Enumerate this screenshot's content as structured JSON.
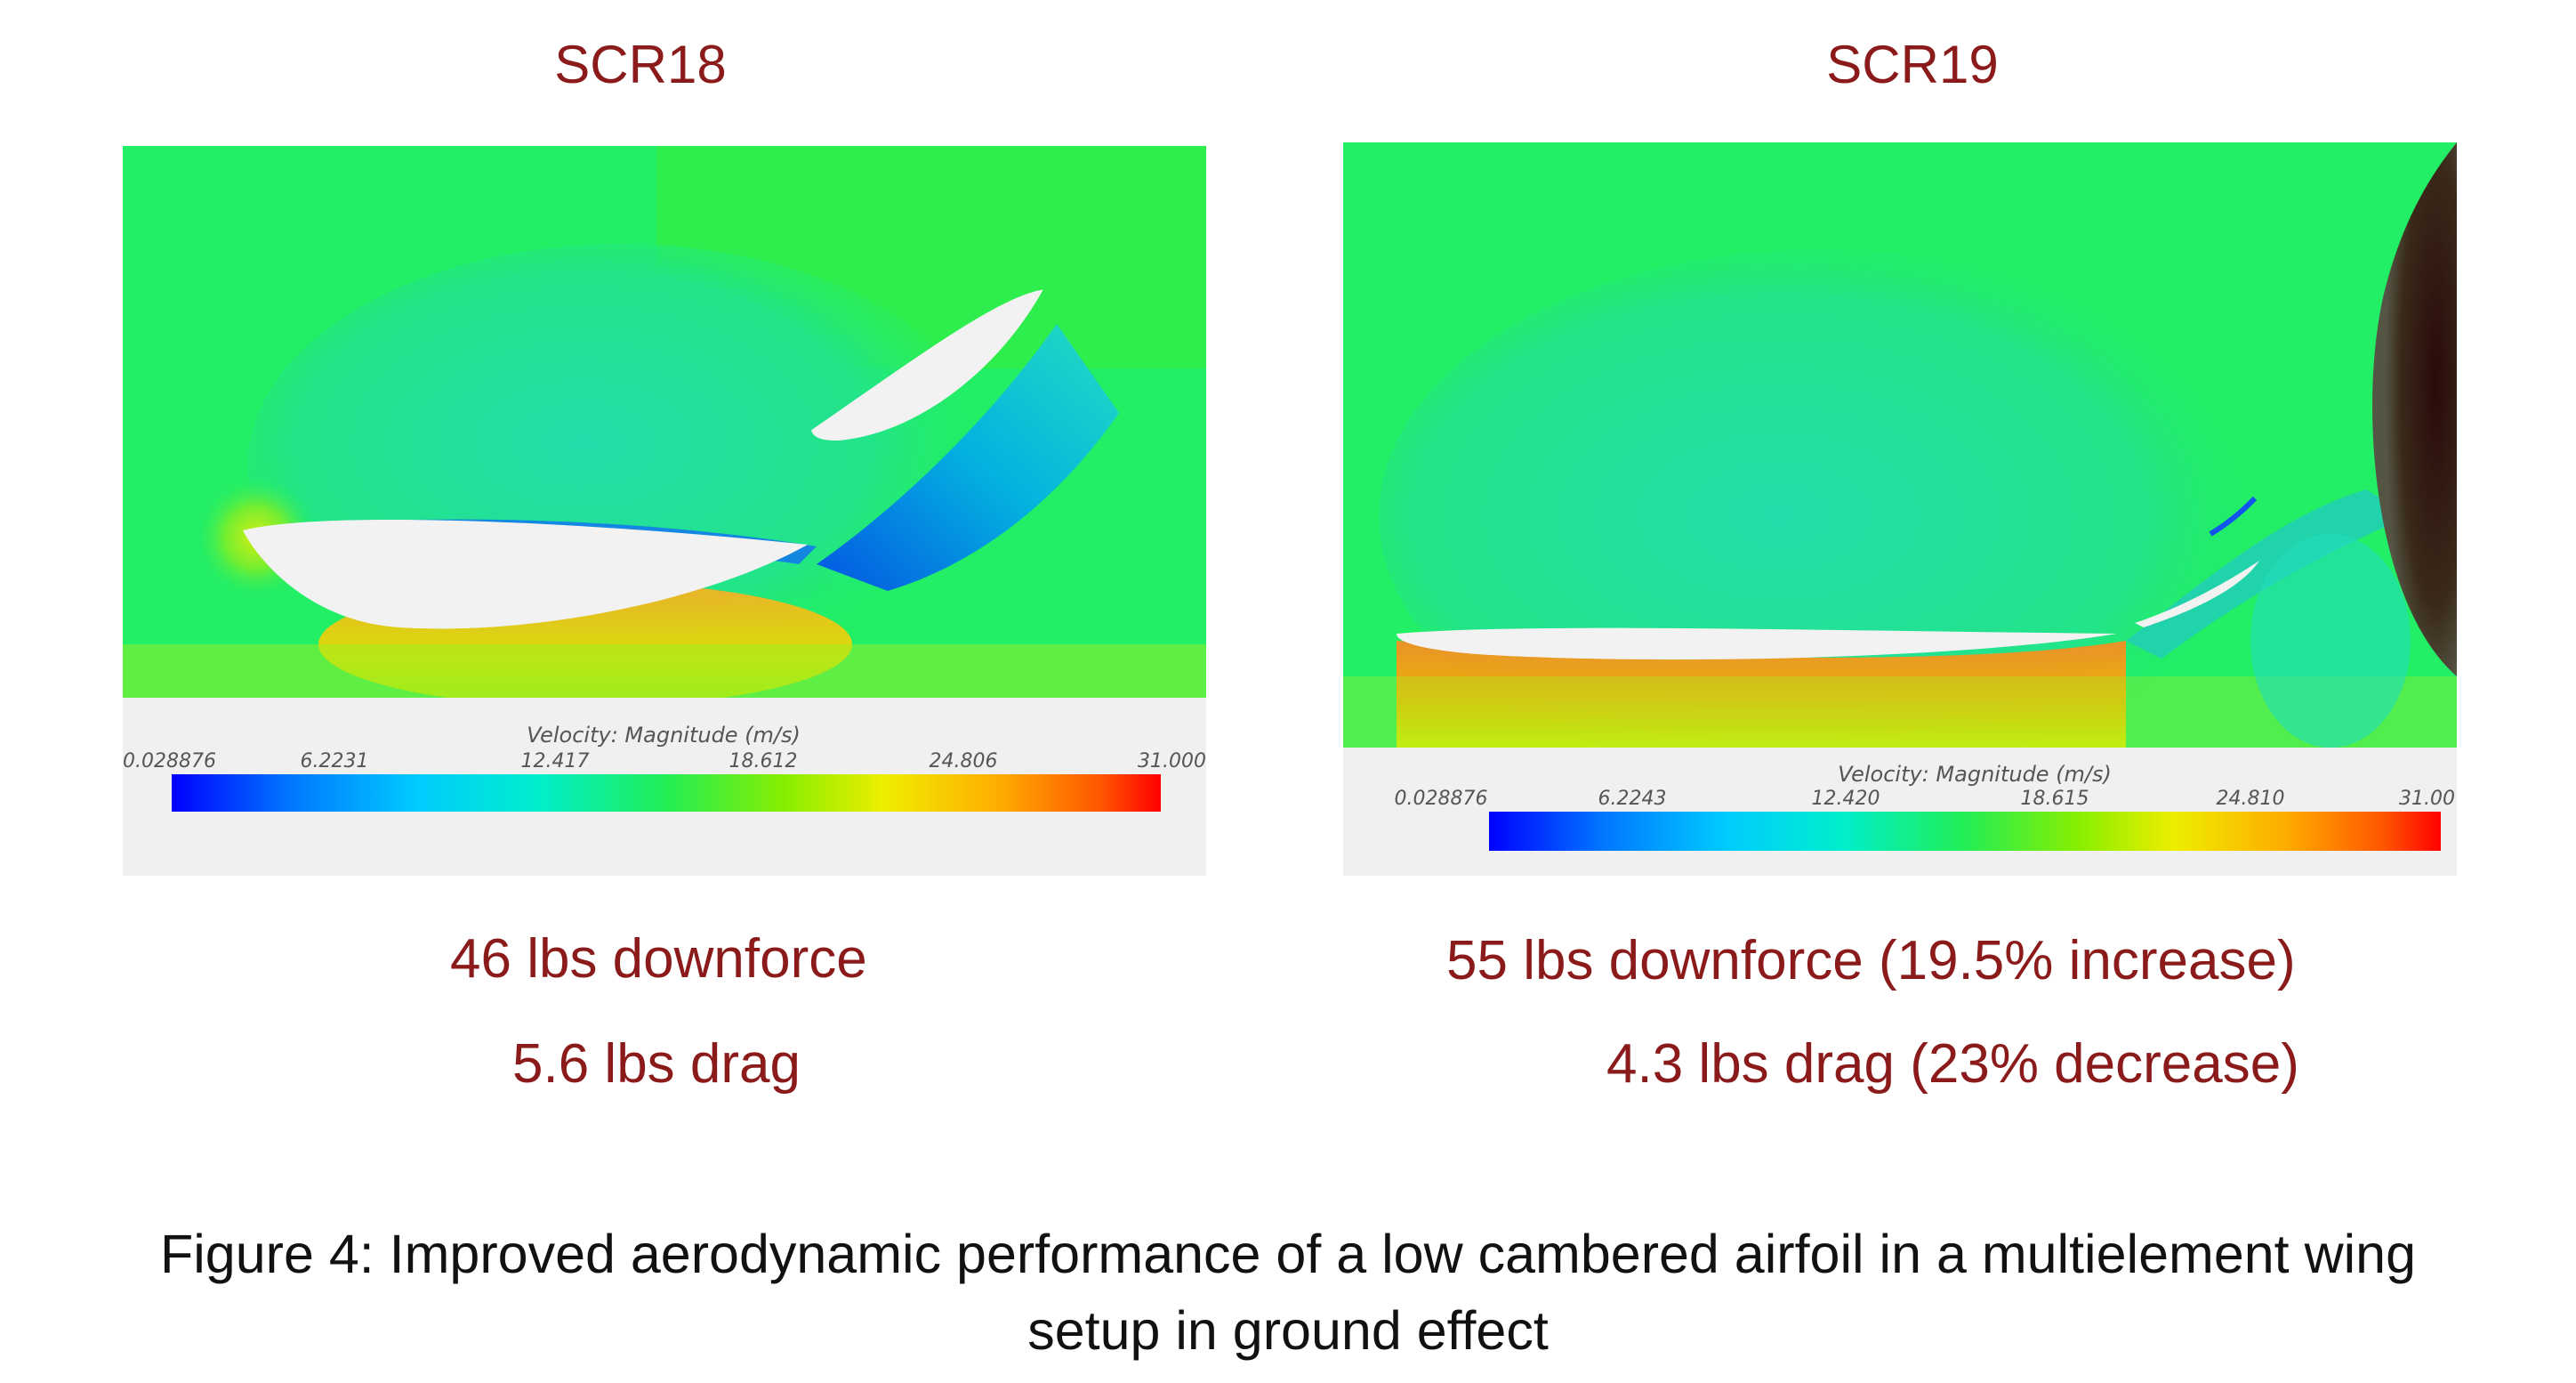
{
  "panels": [
    {
      "title": "SCR18",
      "legend_label": "Velocity: Magnitude (m/s)",
      "ticks": [
        "0.028876",
        "6.2231",
        "12.417",
        "18.612",
        "24.806",
        "31.000"
      ],
      "downforce": "46 lbs downforce",
      "drag": "5.6 lbs drag"
    },
    {
      "title": "SCR19",
      "legend_label": "Velocity: Magnitude (m/s)",
      "ticks": [
        "0.028876",
        "6.2243",
        "12.420",
        "18.615",
        "24.810",
        "31.00"
      ],
      "downforce": "55 lbs downforce (19.5% increase)",
      "drag": "4.3 lbs drag (23% decrease)"
    }
  ],
  "caption": {
    "line1": "Figure 4: Improved aerodynamic performance of a low cambered airfoil in a multielement wing",
    "line2": "setup in ground effect"
  },
  "colors": {
    "title_red": "#8b1a1a",
    "field_green": "#22ee66",
    "colormap": [
      "#0000ff",
      "#0055ff",
      "#00aaff",
      "#00eeee",
      "#00ee88",
      "#44ee22",
      "#aaee00",
      "#eeee00",
      "#ffaa00",
      "#ff5500",
      "#ff0000"
    ]
  }
}
